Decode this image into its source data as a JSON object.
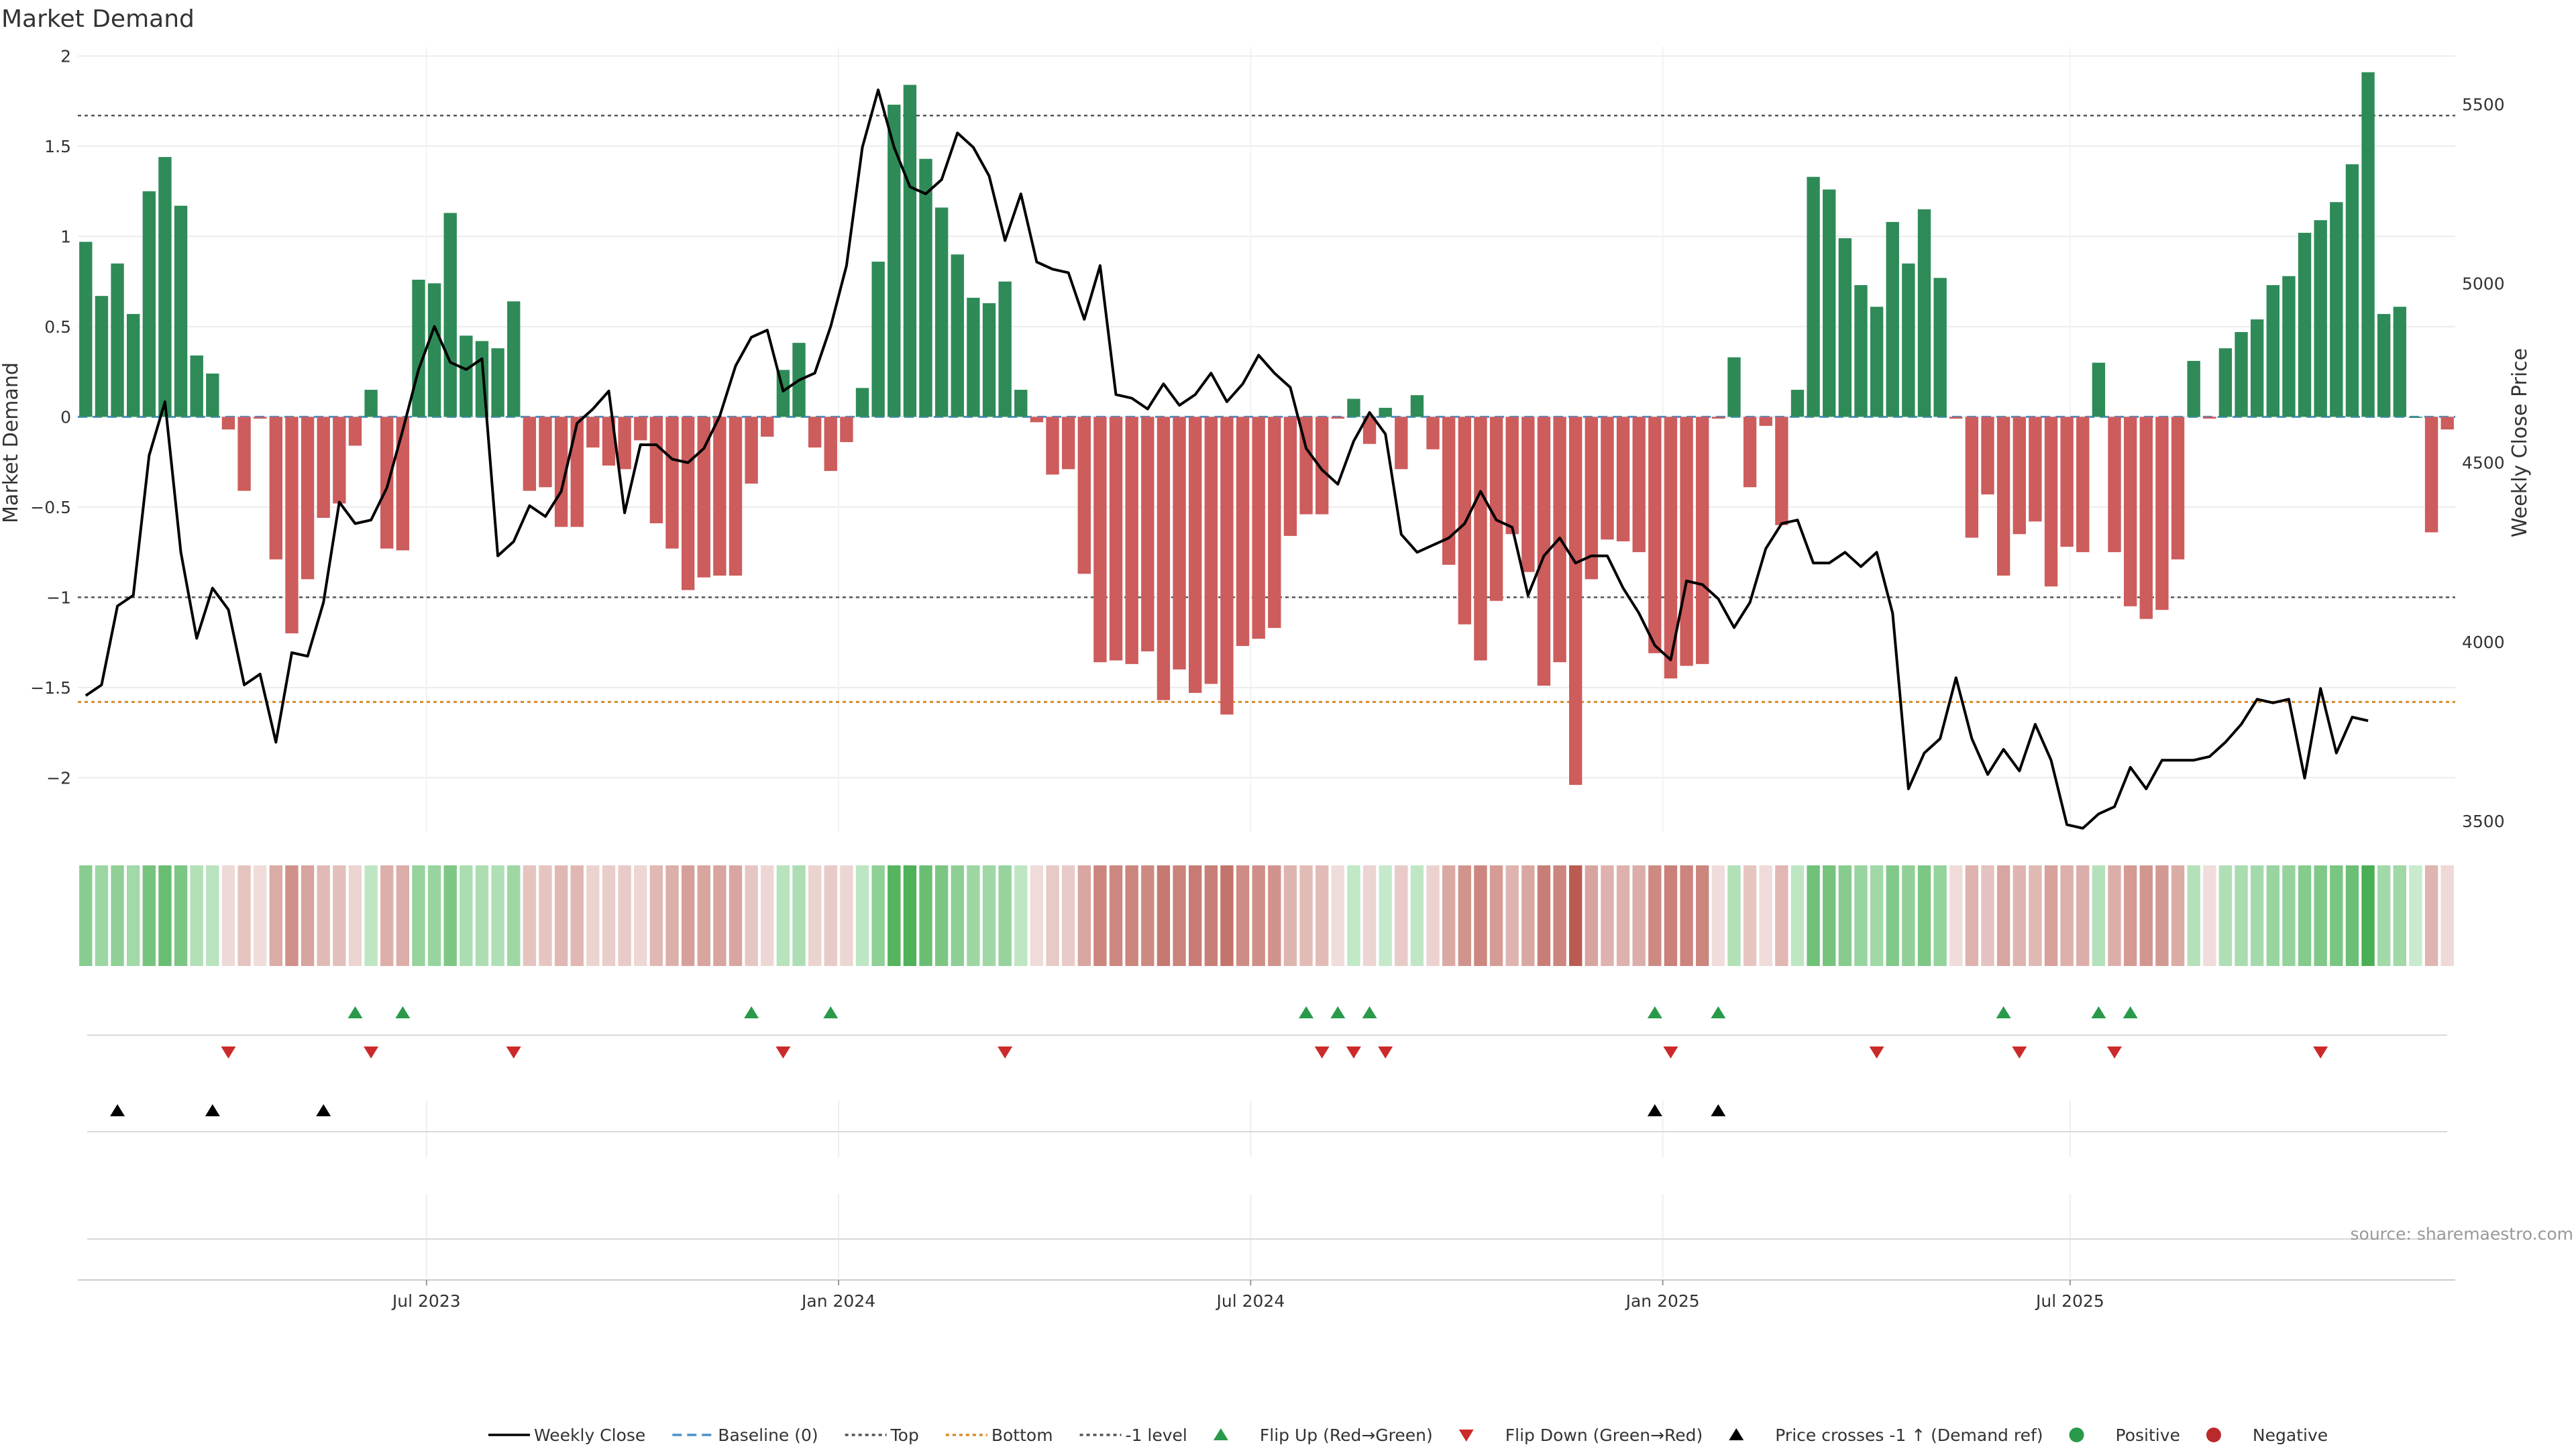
{
  "chart_data": {
    "type": "bar",
    "title": "Market Demand",
    "ylabel": "Market Demand",
    "y2label": "Weekly Close Price",
    "ylim": [
      -2.3,
      2.05
    ],
    "y2lim": [
      3470,
      5660
    ],
    "yticks": [
      2,
      1.5,
      1,
      0.5,
      0,
      -0.5,
      -1,
      -1.5,
      -2
    ],
    "ytick_labels": [
      "2",
      "1.5",
      "1",
      "0.5",
      "0",
      "−0.5",
      "−1",
      "−1.5",
      "−2"
    ],
    "y2ticks": [
      5500,
      5000,
      4500,
      4000,
      3500
    ],
    "y2tick_labels": [
      "5500",
      "5000",
      "4500",
      "4000",
      "3500"
    ],
    "x_ticks": [
      {
        "label": "Jul 2023",
        "index": 22
      },
      {
        "label": "Jan 2024",
        "index": 48
      },
      {
        "label": "Jul 2024",
        "index": 74
      },
      {
        "label": "Jan 2025",
        "index": 100
      },
      {
        "label": "Jul 2025",
        "index": 125.7
      }
    ],
    "reference_lines": {
      "top": 1.67,
      "minus_one_level": -1.0,
      "bottom": -1.58,
      "baseline": 0
    },
    "demand": [
      0.97,
      0.67,
      0.85,
      0.57,
      1.25,
      1.44,
      1.17,
      0.34,
      0.24,
      -0.07,
      -0.41,
      -0.01,
      -0.79,
      -1.2,
      -0.9,
      -0.56,
      -0.48,
      -0.16,
      0.15,
      -0.73,
      -0.74,
      0.76,
      0.74,
      1.13,
      0.45,
      0.42,
      0.38,
      0.64,
      -0.41,
      -0.39,
      -0.61,
      -0.61,
      -0.17,
      -0.27,
      -0.29,
      -0.13,
      -0.59,
      -0.73,
      -0.96,
      -0.89,
      -0.88,
      -0.88,
      -0.37,
      -0.11,
      0.26,
      0.41,
      -0.17,
      -0.3,
      -0.14,
      0.16,
      0.86,
      1.73,
      1.84,
      1.43,
      1.16,
      0.9,
      0.66,
      0.63,
      0.75,
      0.15,
      -0.03,
      -0.32,
      -0.29,
      -0.87,
      -1.36,
      -1.35,
      -1.37,
      -1.3,
      -1.57,
      -1.4,
      -1.53,
      -1.48,
      -1.65,
      -1.27,
      -1.23,
      -1.17,
      -0.66,
      -0.54,
      -0.54,
      -0.01,
      0.1,
      -0.15,
      0.05,
      -0.29,
      0.12,
      -0.18,
      -0.82,
      -1.15,
      -1.35,
      -1.02,
      -0.65,
      -0.86,
      -1.49,
      -1.36,
      -2.04,
      -0.9,
      -0.68,
      -0.69,
      -0.75,
      -1.31,
      -1.45,
      -1.38,
      -1.37,
      -0.01,
      0.33,
      -0.39,
      -0.05,
      -0.6,
      0.15,
      1.33,
      1.26,
      0.99,
      0.73,
      0.61,
      1.08,
      0.85,
      1.15,
      0.77,
      -0.01,
      -0.67,
      -0.43,
      -0.88,
      -0.65,
      -0.58,
      -0.94,
      -0.72,
      -0.75,
      0.3,
      -0.75,
      -1.05,
      -1.12,
      -1.07,
      -0.79,
      0.31,
      -0.01,
      0.38,
      0.47,
      0.54,
      0.73,
      0.78,
      1.02,
      1.09,
      1.19,
      1.4,
      1.91,
      0.57,
      0.61,
      0.0,
      -0.64,
      -0.07
    ],
    "close": [
      3850,
      3880,
      4100,
      4130,
      4520,
      4670,
      4250,
      4010,
      4150,
      4090,
      3880,
      3910,
      3720,
      3970,
      3960,
      4110,
      4390,
      4330,
      4340,
      4430,
      4590,
      4760,
      4880,
      4780,
      4760,
      4790,
      4240,
      4280,
      4380,
      4350,
      4420,
      4610,
      4650,
      4700,
      4360,
      4550,
      4550,
      4510,
      4500,
      4540,
      4630,
      4770,
      4850,
      4870,
      4700,
      4730,
      4750,
      4880,
      5050,
      5380,
      5540,
      5380,
      5270,
      5250,
      5290,
      5420,
      5380,
      5300,
      5120,
      5250,
      5060,
      5040,
      5030,
      4900,
      5050,
      4690,
      4680,
      4650,
      4720,
      4660,
      4690,
      4750,
      4670,
      4720,
      4800,
      4750,
      4710,
      4540,
      4480,
      4440,
      4560,
      4640,
      4580,
      4300,
      4250,
      4270,
      4290,
      4330,
      4420,
      4340,
      4320,
      4130,
      4240,
      4290,
      4220,
      4240,
      4240,
      4150,
      4080,
      3990,
      3950,
      4170,
      4160,
      4120,
      4040,
      4110,
      4260,
      4330,
      4340,
      4220,
      4220,
      4250,
      4210,
      4250,
      4080,
      3590,
      3690,
      3730,
      3900,
      3730,
      3630,
      3700,
      3640,
      3770,
      3670,
      3490,
      3480,
      3520,
      3540,
      3650,
      3590,
      3670,
      3670,
      3670,
      3680,
      3720,
      3770,
      3840,
      3830,
      3840,
      3620,
      3870,
      3690,
      3790,
      3780
    ],
    "flip_up_indices": [
      17,
      20,
      42,
      47,
      77,
      79,
      81,
      99,
      103,
      121,
      127,
      129
    ],
    "flip_down_indices": [
      9,
      18,
      27,
      44,
      58,
      78,
      80,
      82,
      100,
      113,
      122,
      128,
      141
    ],
    "price_cross_indices": [
      2,
      8,
      15,
      99,
      103
    ]
  },
  "legend": [
    {
      "label": "Weekly Close",
      "marker": "line-solid",
      "color": "#000000"
    },
    {
      "label": "Baseline (0)",
      "marker": "line-dashed",
      "color": "#4a90c9"
    },
    {
      "label": "Top",
      "marker": "line-dotted",
      "color": "#555555"
    },
    {
      "label": "Bottom",
      "marker": "line-dotted",
      "color": "#d98a2a"
    },
    {
      "label": "-1 level",
      "marker": "line-dotted",
      "color": "#555555"
    },
    {
      "label": "Flip Up (Red→Green)",
      "marker": "triangle-up",
      "color": "#2a9a4a"
    },
    {
      "label": "Flip Down (Green→Red)",
      "marker": "triangle-down",
      "color": "#cc2a2a"
    },
    {
      "label": "Price crosses -1 ↑ (Demand ref)",
      "marker": "triangle-up",
      "color": "#000000"
    },
    {
      "label": "Positive",
      "marker": "circle",
      "color": "#2a9a4a"
    },
    {
      "label": "Negative",
      "marker": "circle",
      "color": "#bb2a2a"
    }
  ],
  "source": "source: sharemaestro.com",
  "colors": {
    "positive_bar": "#2e8b57",
    "negative_bar": "#cd5c5c",
    "price_line": "#000000",
    "flip_up": "#2a9a4a",
    "flip_down": "#cc2a2a"
  }
}
